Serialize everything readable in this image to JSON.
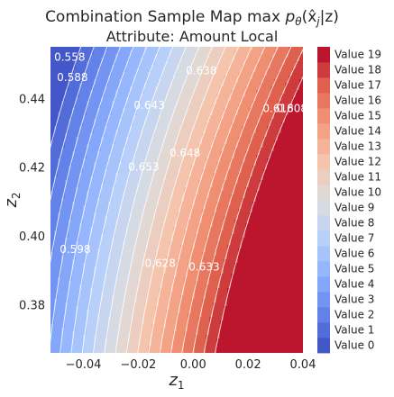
{
  "chart_data": {
    "type": "contour",
    "title_line1": "Combination Sample Map max ",
    "title_math": "p",
    "title_sub": "θ",
    "title_tail": "(x̂",
    "title_tail_sub": "j",
    "title_tail_end": "|z)",
    "subtitle": "Attribute: Amount Local",
    "xlabel": "z",
    "xlabel_sub": "1",
    "ylabel": "z",
    "ylabel_sub": "2",
    "xlim": [
      -0.052,
      0.04
    ],
    "ylim": [
      0.366,
      0.455
    ],
    "xticks": [
      -0.04,
      -0.02,
      0.0,
      0.02,
      0.04
    ],
    "xtick_labels": [
      "−0.04",
      "−0.02",
      "0.00",
      "0.02",
      "0.04"
    ],
    "yticks": [
      0.38,
      0.4,
      0.42,
      0.44
    ],
    "ytick_labels": [
      "0.38",
      "0.40",
      "0.42",
      "0.44"
    ],
    "contour_labels": [
      {
        "text": "0.638",
        "x": 0.003,
        "y": 0.447
      },
      {
        "text": "0.643",
        "x": -0.016,
        "y": 0.437
      },
      {
        "text": "0.648",
        "x": -0.003,
        "y": 0.423
      },
      {
        "text": "0.653",
        "x": -0.018,
        "y": 0.419
      },
      {
        "text": "0.633",
        "x": 0.004,
        "y": 0.39
      },
      {
        "text": "0.628",
        "x": -0.012,
        "y": 0.391
      },
      {
        "text": "0.618",
        "x": 0.031,
        "y": 0.436
      },
      {
        "text": "0.608",
        "x": 0.036,
        "y": 0.436
      },
      {
        "text": "0.558",
        "x": -0.045,
        "y": 0.451
      },
      {
        "text": "0.588",
        "x": -0.044,
        "y": 0.445
      },
      {
        "text": "0.598",
        "x": -0.043,
        "y": 0.395
      }
    ],
    "colorbar_labels": [
      "Value 0",
      "Value 1",
      "Value 2",
      "Value 3",
      "Value 4",
      "Value 5",
      "Value 6",
      "Value 7",
      "Value 8",
      "Value 9",
      "Value 10",
      "Value 11",
      "Value 12",
      "Value 13",
      "Value 14",
      "Value 15",
      "Value 16",
      "Value 17",
      "Value 18",
      "Value 19"
    ],
    "colormap": "coolwarm",
    "grid": false
  }
}
